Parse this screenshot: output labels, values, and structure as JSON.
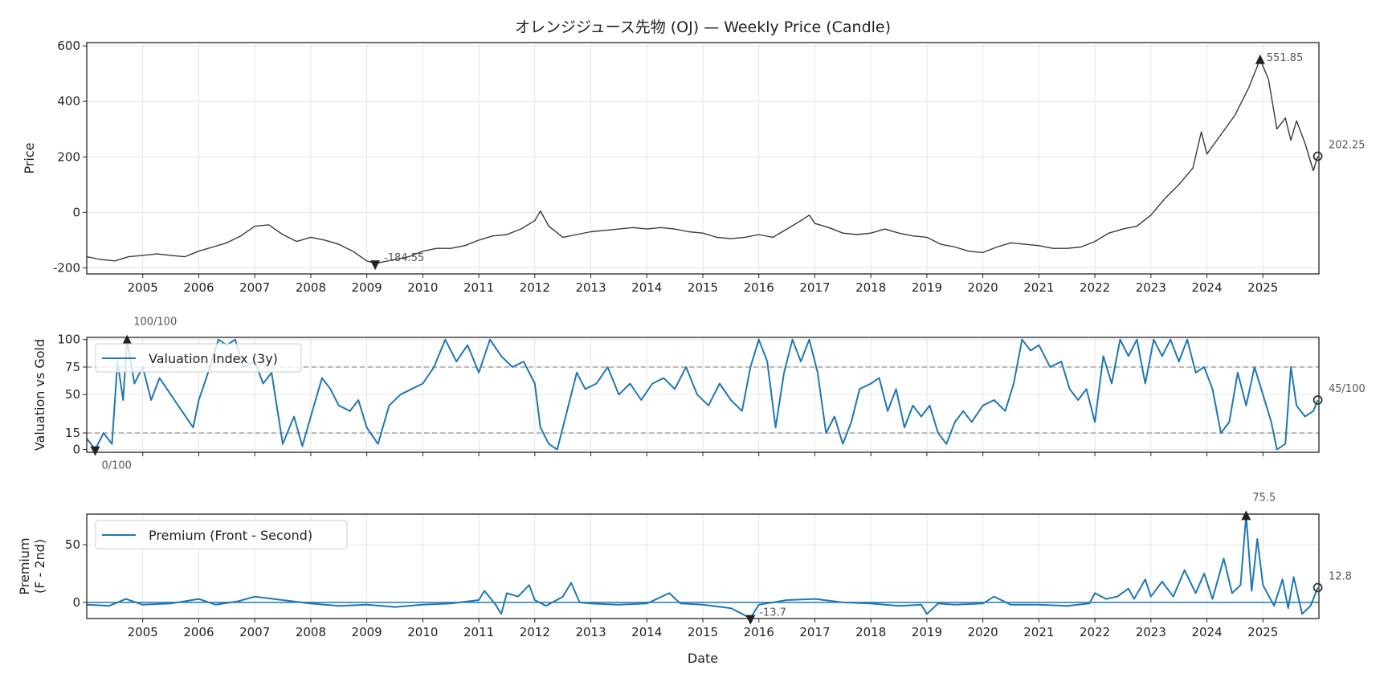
{
  "title": "オレンジジュース先物 (OJ) — Weekly Price (Candle)",
  "colors": {
    "price": "#3a3a3a",
    "series": "#1f77b4",
    "marker": "#222222",
    "annotation": "#555555",
    "grid": "#e6e6e6",
    "ref_line": "#999999"
  },
  "chart_data": [
    {
      "type": "line",
      "id": "price",
      "title": "オレンジジュース先物 (OJ) — Weekly Price (Candle)",
      "xlabel": "",
      "ylabel": "Price",
      "xlim": [
        2004.0,
        2026.0
      ],
      "ylim": [
        -222,
        612
      ],
      "xticks": [
        "2005",
        "2006",
        "2007",
        "2008",
        "2009",
        "2010",
        "2011",
        "2012",
        "2013",
        "2014",
        "2015",
        "2016",
        "2017",
        "2018",
        "2019",
        "2020",
        "2021",
        "2022",
        "2023",
        "2024",
        "2025"
      ],
      "yticks": [
        "-200",
        "0",
        "200",
        "400",
        "600"
      ],
      "grid": true,
      "x": [
        2004.0,
        2004.25,
        2004.5,
        2004.75,
        2005.0,
        2005.25,
        2005.5,
        2005.75,
        2006.0,
        2006.25,
        2006.5,
        2006.75,
        2007.0,
        2007.25,
        2007.5,
        2007.75,
        2008.0,
        2008.25,
        2008.5,
        2008.75,
        2009.0,
        2009.15,
        2009.5,
        2009.75,
        2010.0,
        2010.25,
        2010.5,
        2010.75,
        2011.0,
        2011.25,
        2011.5,
        2011.75,
        2012.0,
        2012.1,
        2012.25,
        2012.5,
        2012.75,
        2013.0,
        2013.25,
        2013.5,
        2013.75,
        2014.0,
        2014.25,
        2014.5,
        2014.75,
        2015.0,
        2015.25,
        2015.5,
        2015.75,
        2016.0,
        2016.25,
        2016.5,
        2016.75,
        2016.9,
        2017.0,
        2017.25,
        2017.5,
        2017.75,
        2018.0,
        2018.25,
        2018.5,
        2018.75,
        2019.0,
        2019.25,
        2019.5,
        2019.75,
        2020.0,
        2020.25,
        2020.5,
        2020.75,
        2021.0,
        2021.25,
        2021.5,
        2021.75,
        2022.0,
        2022.25,
        2022.5,
        2022.75,
        2023.0,
        2023.25,
        2023.5,
        2023.75,
        2023.9,
        2024.0,
        2024.25,
        2024.5,
        2024.75,
        2024.95,
        2025.1,
        2025.25,
        2025.4,
        2025.5,
        2025.6,
        2025.75,
        2025.9,
        2025.98
      ],
      "y": [
        -160,
        -170,
        -175,
        -160,
        -155,
        -150,
        -155,
        -160,
        -140,
        -125,
        -110,
        -85,
        -50,
        -45,
        -80,
        -105,
        -90,
        -100,
        -115,
        -140,
        -175,
        -184.55,
        -170,
        -160,
        -140,
        -130,
        -130,
        -120,
        -100,
        -85,
        -80,
        -60,
        -30,
        5,
        -50,
        -90,
        -80,
        -70,
        -65,
        -60,
        -55,
        -60,
        -55,
        -60,
        -70,
        -75,
        -90,
        -95,
        -90,
        -80,
        -90,
        -60,
        -30,
        -10,
        -40,
        -55,
        -75,
        -80,
        -75,
        -60,
        -75,
        -85,
        -90,
        -115,
        -125,
        -140,
        -145,
        -125,
        -110,
        -115,
        -120,
        -130,
        -130,
        -125,
        -105,
        -75,
        -60,
        -50,
        -10,
        50,
        100,
        160,
        290,
        210,
        280,
        350,
        450,
        551.85,
        480,
        300,
        340,
        260,
        330,
        250,
        150,
        202.25
      ],
      "annotations": [
        {
          "label": "551.85",
          "x": 2024.95,
          "y": 551.85,
          "marker": "triangle-up"
        },
        {
          "label": "-184.55",
          "x": 2009.15,
          "y": -184.55,
          "marker": "triangle-down"
        },
        {
          "label": "202.25",
          "x": 2025.98,
          "y": 202.25,
          "marker": "circle"
        }
      ]
    },
    {
      "type": "line",
      "id": "valuation",
      "ylabel": "Valuation vs Gold",
      "xlim": [
        2004.0,
        2026.0
      ],
      "ylim": [
        -2.5,
        102
      ],
      "yticks": [
        "0",
        "15",
        "50",
        "75",
        "100"
      ],
      "ref_lines": [
        15,
        75
      ],
      "grid": true,
      "legend": {
        "label": "Valuation Index (3y)",
        "position": "upper-left"
      },
      "x": [
        2004.0,
        2004.15,
        2004.3,
        2004.45,
        2004.55,
        2004.65,
        2004.72,
        2004.85,
        2005.0,
        2005.15,
        2005.3,
        2005.5,
        2005.7,
        2005.9,
        2006.0,
        2006.2,
        2006.35,
        2006.5,
        2006.65,
        2006.8,
        2007.0,
        2007.15,
        2007.3,
        2007.5,
        2007.7,
        2007.85,
        2008.0,
        2008.2,
        2008.35,
        2008.5,
        2008.7,
        2008.85,
        2009.0,
        2009.2,
        2009.4,
        2009.6,
        2009.8,
        2010.0,
        2010.2,
        2010.4,
        2010.6,
        2010.8,
        2011.0,
        2011.2,
        2011.4,
        2011.6,
        2011.8,
        2012.0,
        2012.1,
        2012.25,
        2012.4,
        2012.6,
        2012.75,
        2012.9,
        2013.1,
        2013.3,
        2013.5,
        2013.7,
        2013.9,
        2014.1,
        2014.3,
        2014.5,
        2014.7,
        2014.9,
        2015.1,
        2015.3,
        2015.5,
        2015.7,
        2015.85,
        2016.0,
        2016.15,
        2016.3,
        2016.45,
        2016.6,
        2016.75,
        2016.9,
        2017.05,
        2017.2,
        2017.35,
        2017.5,
        2017.65,
        2017.8,
        2018.0,
        2018.15,
        2018.3,
        2018.45,
        2018.6,
        2018.75,
        2018.9,
        2019.05,
        2019.2,
        2019.35,
        2019.5,
        2019.65,
        2019.8,
        2020.0,
        2020.2,
        2020.4,
        2020.55,
        2020.7,
        2020.85,
        2021.0,
        2021.2,
        2021.4,
        2021.55,
        2021.7,
        2021.85,
        2022.0,
        2022.15,
        2022.3,
        2022.45,
        2022.6,
        2022.75,
        2022.9,
        2023.05,
        2023.2,
        2023.35,
        2023.5,
        2023.65,
        2023.8,
        2023.95,
        2024.1,
        2024.25,
        2024.4,
        2024.55,
        2024.7,
        2024.85,
        2025.0,
        2025.15,
        2025.25,
        2025.4,
        2025.5,
        2025.6,
        2025.75,
        2025.9,
        2025.98
      ],
      "y": [
        10,
        0,
        15,
        5,
        80,
        45,
        100,
        60,
        75,
        45,
        65,
        50,
        35,
        20,
        45,
        75,
        100,
        95,
        100,
        75,
        80,
        60,
        70,
        5,
        30,
        3,
        30,
        65,
        55,
        40,
        35,
        45,
        20,
        5,
        40,
        50,
        55,
        60,
        75,
        100,
        80,
        95,
        70,
        100,
        85,
        75,
        80,
        60,
        20,
        5,
        0,
        40,
        70,
        55,
        60,
        75,
        50,
        60,
        45,
        60,
        65,
        55,
        75,
        50,
        40,
        60,
        45,
        35,
        75,
        100,
        80,
        20,
        70,
        100,
        80,
        100,
        70,
        15,
        30,
        5,
        25,
        55,
        60,
        65,
        35,
        55,
        20,
        40,
        30,
        40,
        15,
        5,
        25,
        35,
        25,
        40,
        45,
        35,
        60,
        100,
        90,
        95,
        75,
        80,
        55,
        45,
        55,
        25,
        85,
        60,
        100,
        85,
        100,
        60,
        100,
        85,
        100,
        80,
        100,
        70,
        75,
        55,
        15,
        25,
        70,
        40,
        75,
        50,
        25,
        0,
        5,
        75,
        40,
        30,
        35,
        45
      ],
      "annotations": [
        {
          "label": "100/100",
          "x": 2004.72,
          "y": 100,
          "marker": "triangle-up"
        },
        {
          "label": "0/100",
          "x": 2004.15,
          "y": 0,
          "marker": "triangle-down"
        },
        {
          "label": "45/100",
          "x": 2025.98,
          "y": 45,
          "marker": "circle"
        }
      ]
    },
    {
      "type": "line",
      "id": "premium",
      "xlabel": "Date",
      "ylabel": "Premium\n(F - 2nd)",
      "ylabel_lines": [
        "Premium",
        "(F - 2nd)"
      ],
      "xlim": [
        2004.0,
        2026.0
      ],
      "ylim": [
        -14,
        76.5
      ],
      "xticks": [
        "2005",
        "2006",
        "2007",
        "2008",
        "2009",
        "2010",
        "2011",
        "2012",
        "2013",
        "2014",
        "2015",
        "2016",
        "2017",
        "2018",
        "2019",
        "2020",
        "2021",
        "2022",
        "2023",
        "2024",
        "2025"
      ],
      "yticks": [
        "0",
        "50"
      ],
      "ref_lines": [
        0
      ],
      "grid": true,
      "legend": {
        "label": "Premium (Front - Second)",
        "position": "upper-left"
      },
      "x": [
        2004.0,
        2004.4,
        2004.7,
        2005.0,
        2005.5,
        2006.0,
        2006.3,
        2006.7,
        2007.0,
        2007.5,
        2008.0,
        2008.5,
        2009.0,
        2009.5,
        2010.0,
        2010.5,
        2011.0,
        2011.1,
        2011.3,
        2011.4,
        2011.5,
        2011.7,
        2011.9,
        2012.0,
        2012.2,
        2012.5,
        2012.65,
        2012.8,
        2013.0,
        2013.5,
        2014.0,
        2014.4,
        2014.6,
        2015.0,
        2015.5,
        2015.85,
        2016.0,
        2016.5,
        2017.0,
        2017.5,
        2018.0,
        2018.5,
        2018.9,
        2019.0,
        2019.2,
        2019.5,
        2020.0,
        2020.2,
        2020.5,
        2021.0,
        2021.5,
        2021.9,
        2022.0,
        2022.2,
        2022.4,
        2022.6,
        2022.7,
        2022.9,
        2023.0,
        2023.2,
        2023.4,
        2023.6,
        2023.8,
        2023.95,
        2024.1,
        2024.3,
        2024.45,
        2024.6,
        2024.7,
        2024.8,
        2024.9,
        2025.0,
        2025.2,
        2025.35,
        2025.45,
        2025.55,
        2025.7,
        2025.85,
        2025.98
      ],
      "y": [
        -2,
        -3,
        3,
        -2,
        -1,
        3,
        -2,
        1,
        5,
        2,
        -1,
        -3,
        -2,
        -4,
        -2,
        -1,
        2,
        10,
        -2,
        -10,
        8,
        5,
        15,
        2,
        -3,
        5,
        17,
        0,
        -1,
        -2,
        -1,
        8,
        -1,
        -2,
        -5,
        -13.7,
        -2,
        2,
        3,
        0,
        -1,
        -3,
        -2,
        -10,
        -1,
        -2,
        -1,
        5,
        -2,
        -2,
        -3,
        -1,
        8,
        3,
        5,
        12,
        3,
        20,
        5,
        18,
        5,
        28,
        8,
        25,
        3,
        38,
        8,
        15,
        75.5,
        10,
        55,
        15,
        -3,
        20,
        -5,
        22,
        -10,
        -3,
        12.8
      ],
      "annotations": [
        {
          "label": "75.5",
          "x": 2024.7,
          "y": 75.5,
          "marker": "triangle-up"
        },
        {
          "label": "-13.7",
          "x": 2015.85,
          "y": -13.7,
          "marker": "triangle-down"
        },
        {
          "label": "12.8",
          "x": 2025.98,
          "y": 12.8,
          "marker": "circle"
        }
      ]
    }
  ]
}
